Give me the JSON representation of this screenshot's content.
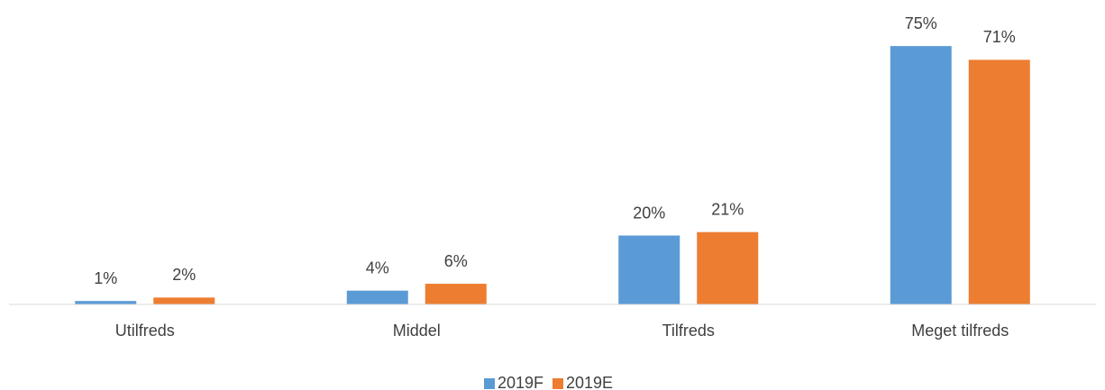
{
  "chart_data": {
    "type": "bar",
    "categories": [
      "Utilfreds",
      "Middel",
      "Tilfreds",
      "Meget tilfreds"
    ],
    "series": [
      {
        "name": "2019F",
        "color": "#5b9bd5",
        "values": [
          1,
          4,
          20,
          75
        ],
        "value_labels": [
          "1%",
          "4%",
          "20%",
          "75%"
        ]
      },
      {
        "name": "2019E",
        "color": "#ed7d31",
        "values": [
          2,
          6,
          21,
          71
        ],
        "value_labels": [
          "2%",
          "6%",
          "21%",
          "71%"
        ]
      }
    ],
    "ylim": [
      0,
      80
    ],
    "legend": "bottom"
  }
}
